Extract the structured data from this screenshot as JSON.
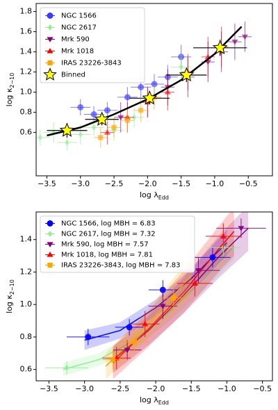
{
  "chart_data": [
    {
      "type": "scatter",
      "xlabel": "log λ",
      "xlabel_sub": "Edd",
      "ylabel": "log κ",
      "ylabel_sub": "2−10",
      "xlim": [
        -3.66,
        -0.14
      ],
      "ylim": [
        0.17,
        1.88
      ],
      "xticks": [
        {
          "value": -3.5,
          "label": "−3.5"
        },
        {
          "value": -3,
          "label": "−3.0"
        },
        {
          "value": -2.5,
          "label": "−2.5"
        },
        {
          "value": -2,
          "label": "−2.0"
        },
        {
          "value": -1.5,
          "label": "−1.5"
        },
        {
          "value": -1,
          "label": "−1.0"
        },
        {
          "value": -0.5,
          "label": "−0.5"
        }
      ],
      "yticks": [
        0.6,
        0.8,
        {
          "value": 1,
          "label": "1.0"
        },
        1.2,
        1.4,
        1.6,
        1.8
      ],
      "legend": "upper left",
      "series": [
        {
          "name": "NGC 1566",
          "color": "#3b3bff",
          "marker": "circle",
          "x": [
            -3.0,
            -2.8,
            -2.6,
            -2.3,
            -2.1,
            -1.9,
            -1.7,
            -1.5
          ],
          "y": [
            0.85,
            0.78,
            0.82,
            0.95,
            1.05,
            1.08,
            1.15,
            1.35
          ],
          "xerr": [
            0.15,
            0.15,
            0.15,
            0.15,
            0.15,
            0.15,
            0.15,
            0.15
          ],
          "yerr": [
            0.08,
            0.08,
            0.08,
            0.1,
            0.1,
            0.1,
            0.12,
            0.12
          ]
        },
        {
          "name": "NGC 2617",
          "color": "#90ee90",
          "marker": "diamond",
          "x": [
            -3.6,
            -3.4,
            -3.2,
            -3.0,
            -2.8,
            -2.5,
            -2.2,
            -1.5
          ],
          "y": [
            0.55,
            0.6,
            0.5,
            0.58,
            0.65,
            0.62,
            0.75,
            1.25
          ],
          "xerr": [
            0.15,
            0.15,
            0.15,
            0.15,
            0.15,
            0.15,
            0.15,
            0.15
          ],
          "yerr": [
            0.08,
            0.1,
            0.08,
            0.1,
            0.08,
            0.1,
            0.1,
            0.12
          ]
        },
        {
          "name": "Mrk 590",
          "color": "#800080",
          "marker": "tri-down",
          "x": [
            -2.4,
            -2.0,
            -1.7,
            -1.4,
            -1.1,
            -0.9,
            -0.7,
            -0.55
          ],
          "y": [
            0.75,
            0.9,
            1.05,
            1.15,
            1.3,
            1.4,
            1.5,
            1.55
          ],
          "xerr": [
            0.1,
            0.1,
            0.1,
            0.1,
            0.1,
            0.1,
            0.1,
            0.1
          ],
          "yerr": [
            0.15,
            0.15,
            0.18,
            0.2,
            0.2,
            0.2,
            0.18,
            0.15
          ]
        },
        {
          "name": "Mrk 1018",
          "color": "#ff0000",
          "marker": "tri-up",
          "x": [
            -2.6,
            -2.3,
            -2.0,
            -1.7,
            -1.4,
            -1.1,
            -0.9
          ],
          "y": [
            0.6,
            0.75,
            0.9,
            1.0,
            1.2,
            1.35,
            1.45
          ],
          "xerr": [
            0.1,
            0.1,
            0.1,
            0.1,
            0.1,
            0.1,
            0.1
          ],
          "yerr": [
            0.12,
            0.15,
            0.15,
            0.18,
            0.18,
            0.2,
            0.2
          ]
        },
        {
          "name": "IRAS 23226-3843",
          "color": "#ffa500",
          "marker": "square",
          "x": [
            -2.7,
            -2.5,
            -2.3,
            -2.1,
            -1.9
          ],
          "y": [
            0.55,
            0.65,
            0.72,
            0.82,
            0.95
          ],
          "xerr": [
            0.1,
            0.1,
            0.1,
            0.1,
            0.1
          ],
          "yerr": [
            0.1,
            0.1,
            0.12,
            0.12,
            0.12
          ]
        },
        {
          "color": "#000000",
          "marker": "line",
          "x": [
            -3.5,
            -3.0,
            -2.5,
            -2.0,
            -1.5,
            -1.0,
            -0.6
          ],
          "y": [
            0.57,
            0.65,
            0.78,
            0.93,
            1.12,
            1.38,
            1.65
          ]
        },
        {
          "name": "Binned",
          "color": "#ffff00",
          "marker": "star",
          "x": [
            -3.2,
            -2.68,
            -1.97,
            -1.42,
            -0.92
          ],
          "y": [
            0.62,
            0.73,
            0.94,
            1.17,
            1.44
          ],
          "xerr": [
            0.3,
            0.25,
            0.3,
            0.3,
            0.4
          ],
          "yerr": [
            0.07,
            0.06,
            0.06,
            0.07,
            0.08
          ]
        }
      ]
    },
    {
      "type": "scatter",
      "xlabel": "log λ",
      "xlabel_sub": "Edd",
      "ylabel": "log κ",
      "ylabel_sub": "2−10",
      "xlim": [
        -3.68,
        -0.36
      ],
      "ylim": [
        0.53,
        1.57
      ],
      "xticks": [
        {
          "value": -3.5,
          "label": "−3.5"
        },
        {
          "value": -3,
          "label": "−3.0"
        },
        {
          "value": -2.5,
          "label": "−2.5"
        },
        {
          "value": -2,
          "label": "−2.0"
        },
        {
          "value": -1.5,
          "label": "−1.5"
        },
        {
          "value": -1,
          "label": "−1.0"
        },
        {
          "value": -0.5,
          "label": "−0.5"
        }
      ],
      "yticks": [
        0.6,
        0.8,
        {
          "value": 1,
          "label": "1.0"
        },
        1.2,
        1.4
      ],
      "legend": "upper left",
      "series": [
        {
          "name": "NGC 1566, log MBH = 6.83",
          "color": "#0000ff",
          "marker": "circle",
          "x": [
            -2.95,
            -2.37,
            -1.9,
            -1.2
          ],
          "y": [
            0.8,
            0.86,
            1.09,
            1.29
          ],
          "xerr": [
            0.3,
            0.2,
            0.2,
            0.25
          ],
          "yerr": [
            0.05,
            0.05,
            0.06,
            0.06
          ],
          "curve": {
            "x": [
              -3.0,
              -2.5,
              -2.0,
              -1.5,
              -1.0
            ],
            "y": [
              0.78,
              0.84,
              0.98,
              1.16,
              1.38
            ],
            "band": [
              0.06,
              0.05,
              0.05,
              0.06,
              0.08
            ]
          }
        },
        {
          "name": "NGC 2617, log MBH = 7.32",
          "color": "#90ee90",
          "marker": "diamond",
          "x": [
            -3.25,
            -1.05
          ],
          "y": [
            0.61,
            1.35
          ],
          "xerr": [
            0.3,
            0.25
          ],
          "yerr": [
            0.04,
            0.05
          ],
          "curve": {
            "x": [
              -3.3,
              -2.8,
              -2.3,
              -1.8,
              -1.3,
              -0.9
            ],
            "y": [
              0.6,
              0.66,
              0.78,
              0.96,
              1.17,
              1.36
            ],
            "band": [
              0.04,
              0.04,
              0.05,
              0.06,
              0.07,
              0.08
            ]
          }
        },
        {
          "name": "Mrk 590, log MBH = 7.57",
          "color": "#800080",
          "marker": "tri-down",
          "x": [
            -2.4,
            -1.9,
            -1.4,
            -0.8
          ],
          "y": [
            0.72,
            0.99,
            1.21,
            1.47
          ],
          "xerr": [
            0.2,
            0.2,
            0.3,
            0.35
          ],
          "yerr": [
            0.06,
            0.08,
            0.08,
            0.06
          ],
          "curve": {
            "x": [
              -2.6,
              -2.1,
              -1.6,
              -1.1,
              -0.7
            ],
            "y": [
              0.66,
              0.84,
              1.06,
              1.3,
              1.47
            ],
            "band": [
              0.08,
              0.09,
              0.11,
              0.13,
              0.14
            ]
          }
        },
        {
          "name": "Mrk 1018, log MBH = 7.81",
          "color": "#ff0000",
          "marker": "tri-up",
          "x": [
            -2.55,
            -2.15,
            -1.45,
            -1.05
          ],
          "y": [
            0.67,
            0.88,
            1.13,
            1.42
          ],
          "xerr": [
            0.2,
            0.2,
            0.25,
            0.25
          ],
          "yerr": [
            0.07,
            0.08,
            0.08,
            0.08
          ],
          "curve": {
            "x": [
              -2.6,
              -2.1,
              -1.6,
              -1.1,
              -0.9
            ],
            "y": [
              0.64,
              0.85,
              1.08,
              1.35,
              1.45
            ],
            "band": [
              0.1,
              0.11,
              0.13,
              0.14,
              0.15
            ]
          }
        },
        {
          "name": "IRAS 23226-3843, log MBH = 7.83",
          "color": "#ffa500",
          "marker": "square",
          "x": [
            -2.6,
            -2.3,
            -1.75
          ],
          "y": [
            0.66,
            0.77,
            1.04
          ],
          "xerr": [
            0.15,
            0.2,
            0.2
          ],
          "yerr": [
            0.06,
            0.07,
            0.08
          ],
          "curve": {
            "x": [
              -2.7,
              -2.3,
              -1.9,
              -1.5
            ],
            "y": [
              0.62,
              0.79,
              0.98,
              1.18
            ],
            "band": [
              0.08,
              0.09,
              0.1,
              0.12
            ]
          }
        }
      ]
    }
  ]
}
